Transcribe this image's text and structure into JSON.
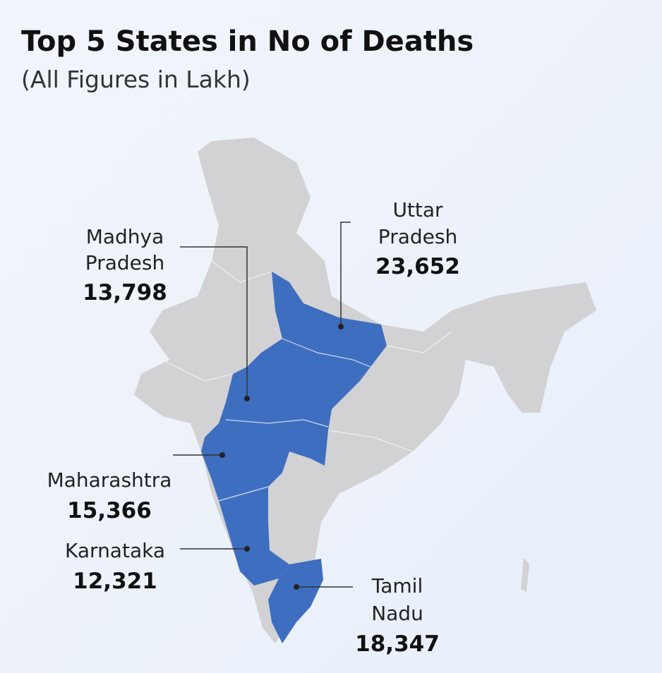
{
  "header": {
    "title": "Top 5 States in No of Deaths",
    "subtitle": "(All Figures in Lakh)"
  },
  "states": [
    {
      "name": [
        "Madhya",
        "Pradesh"
      ],
      "value": "13,798"
    },
    {
      "name": [
        "Uttar",
        "Pradesh"
      ],
      "value": "23,652"
    },
    {
      "name": [
        "Maharashtra"
      ],
      "value": "15,366"
    },
    {
      "name": [
        "Karnataka"
      ],
      "value": "12,321"
    },
    {
      "name": [
        "Tamil",
        "Nadu"
      ],
      "value": "18,347"
    }
  ]
}
